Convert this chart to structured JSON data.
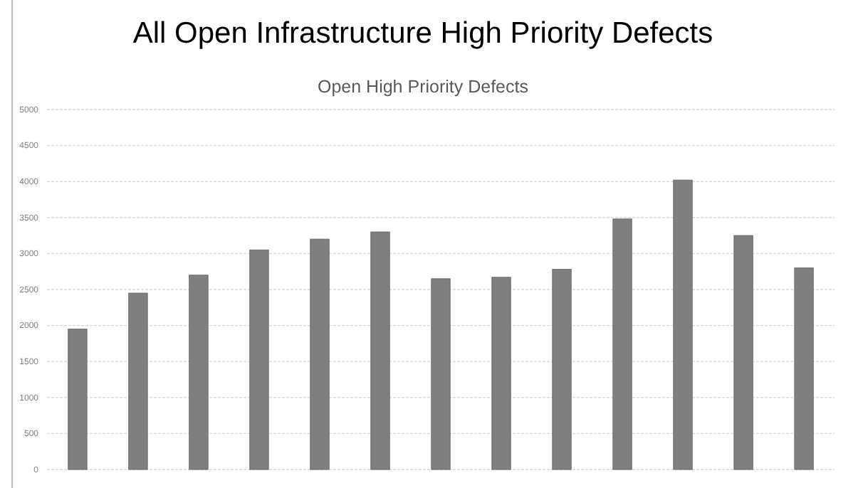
{
  "chart_data": {
    "type": "bar",
    "title": "All Open Infrastructure High Priority Defects",
    "subtitle": "Open High Priority Defects",
    "categories": [
      null,
      null,
      null,
      null,
      null,
      null,
      null,
      null,
      null,
      null,
      null,
      null,
      null
    ],
    "values": [
      1950,
      2450,
      2700,
      3050,
      3200,
      3300,
      2650,
      2670,
      2780,
      3480,
      4020,
      3250,
      2800
    ],
    "color": "#7f7f7f",
    "ylim": [
      0,
      5000
    ],
    "yticks": [
      0,
      500,
      1000,
      1500,
      2000,
      2500,
      3000,
      3500,
      4000,
      4500,
      5000
    ],
    "grid": "y"
  }
}
